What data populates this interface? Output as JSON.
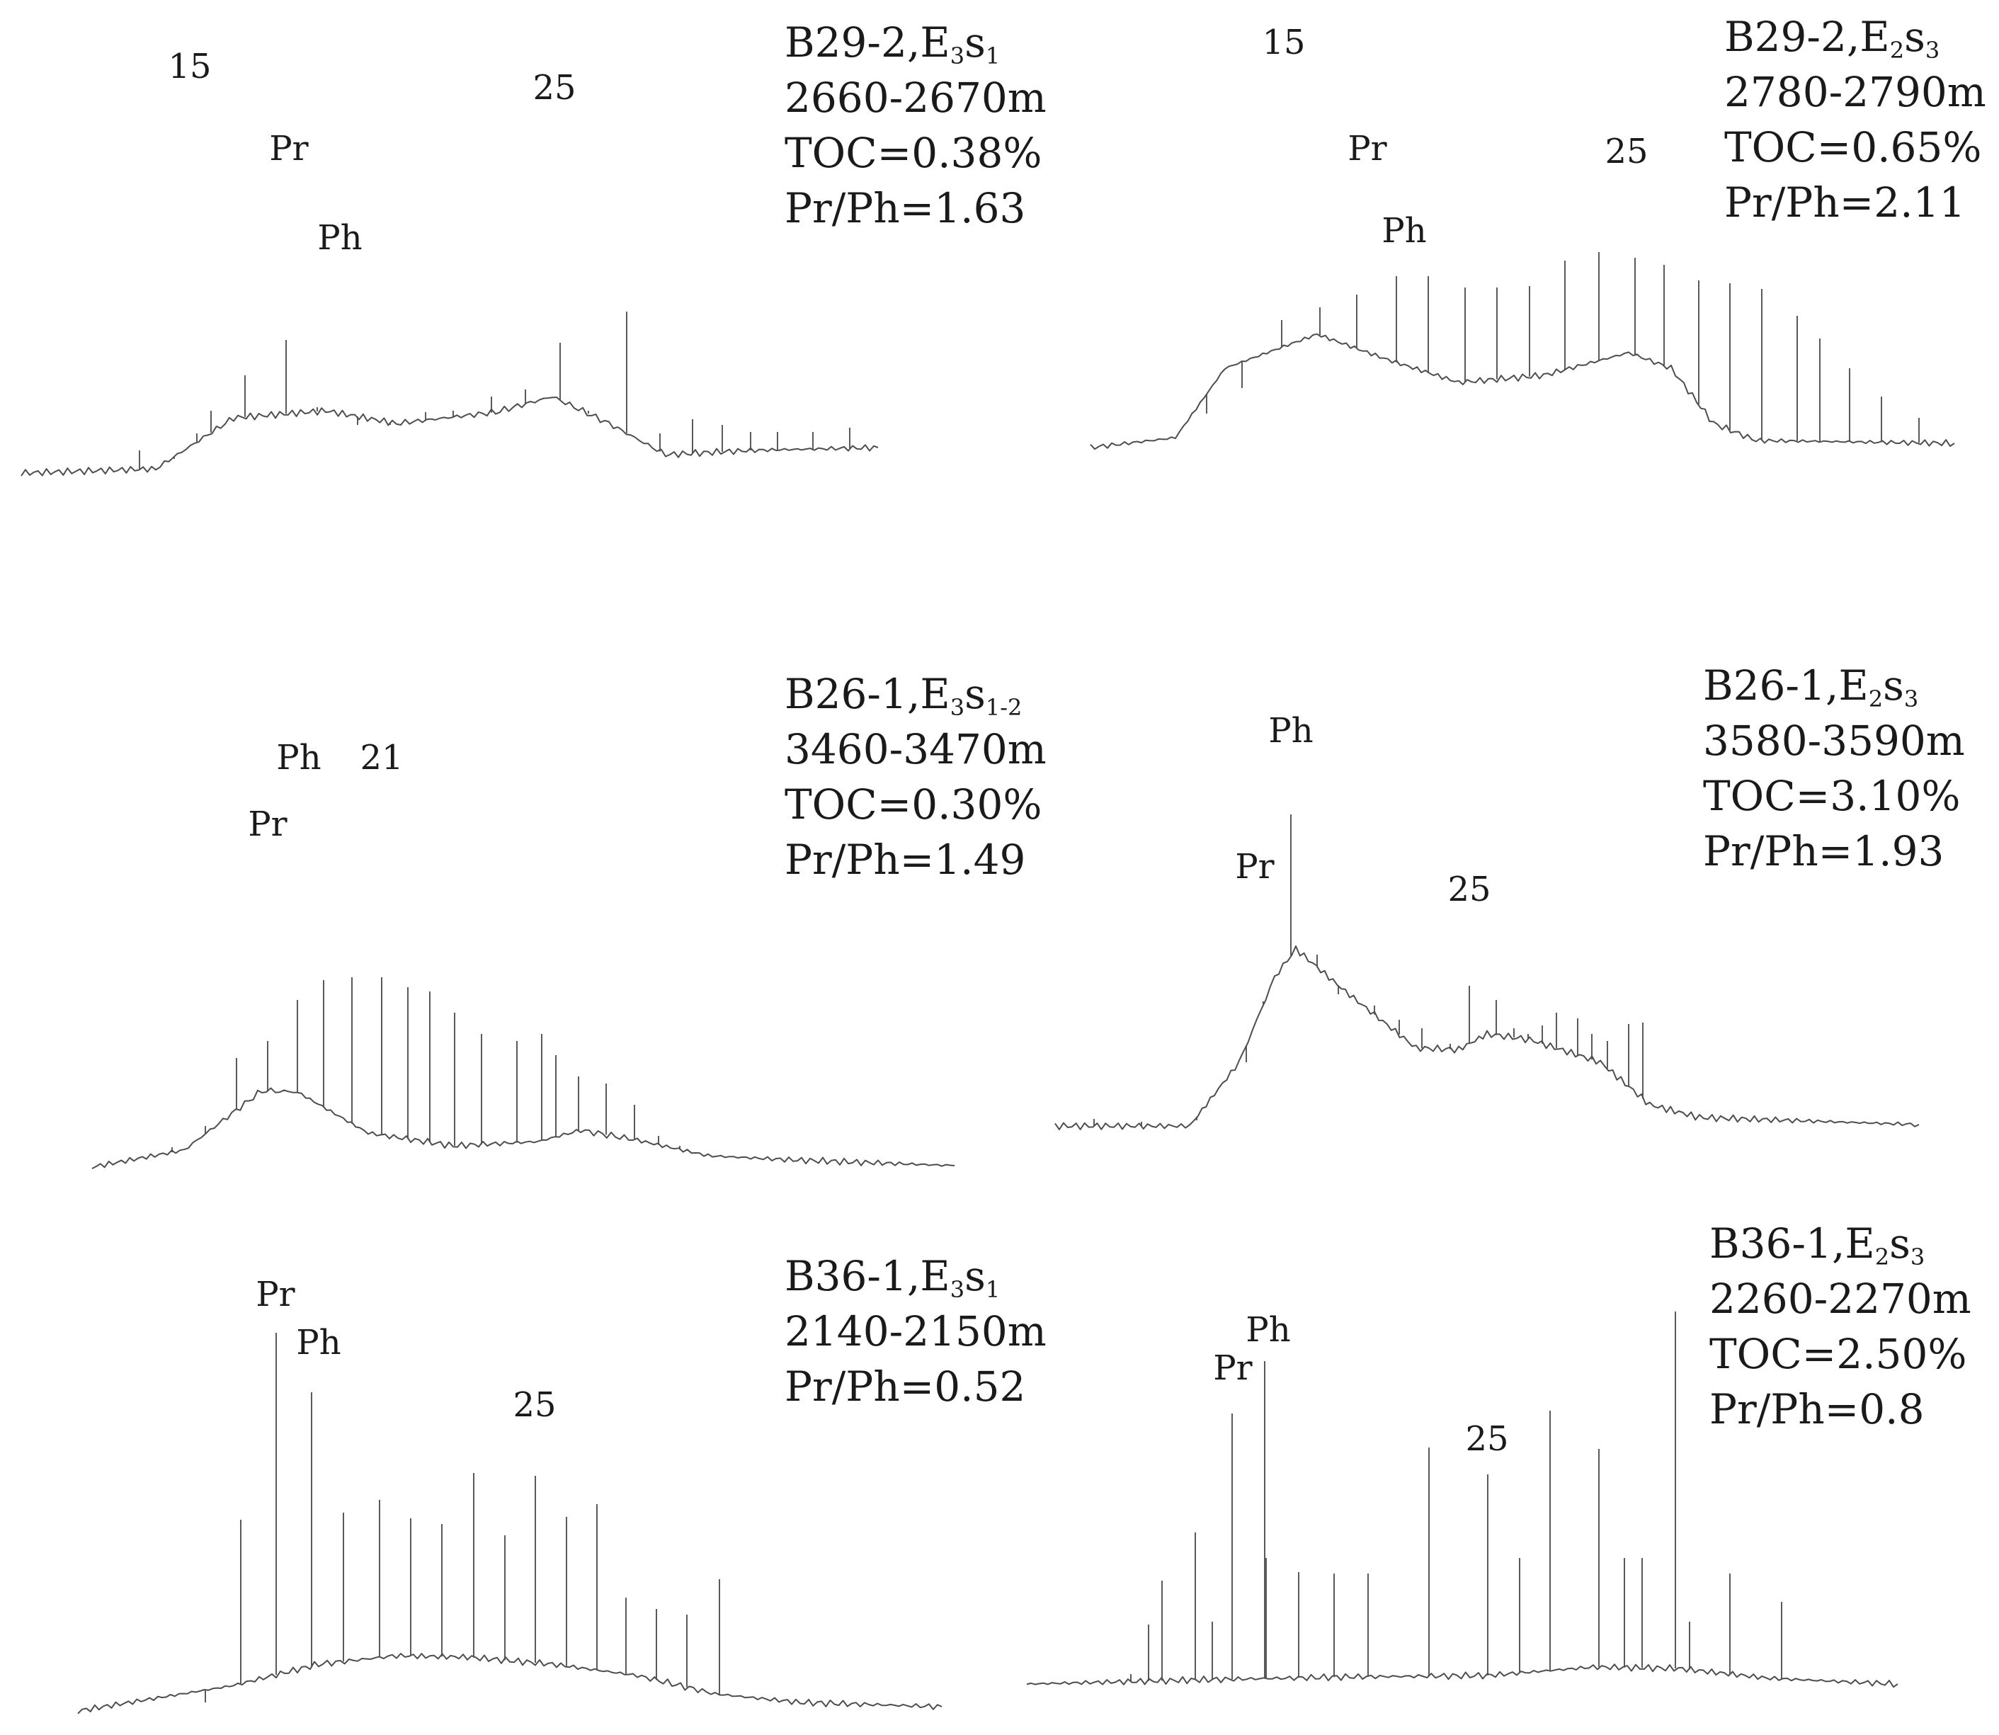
{
  "chart_data": [
    {
      "type": "chromatogram",
      "position": "top-left",
      "sample": {
        "well": "B29-2",
        "formation": "E",
        "formation_sub1": "3",
        "formation_mid": "s",
        "formation_sub2": "1"
      },
      "depth": "2660-2670m",
      "toc": "TOC=0.38%",
      "pr_ph": "Pr/Ph=1.63",
      "peak_labels": [
        "15",
        "Pr",
        "Ph",
        "25"
      ]
    },
    {
      "type": "chromatogram",
      "position": "top-right",
      "sample": {
        "well": "B29-2",
        "formation": "E",
        "formation_sub1": "2",
        "formation_mid": "s",
        "formation_sub2": "3"
      },
      "depth": "2780-2790m",
      "toc": "TOC=0.65%",
      "pr_ph": "Pr/Ph=2.11",
      "peak_labels": [
        "15",
        "Pr",
        "Ph",
        "25"
      ]
    },
    {
      "type": "chromatogram",
      "position": "middle-left",
      "sample": {
        "well": "B26-1",
        "formation": "E",
        "formation_sub1": "3",
        "formation_mid": "s",
        "formation_sub2": "1-2"
      },
      "depth": "3460-3470m",
      "toc": "TOC=0.30%",
      "pr_ph": "Pr/Ph=1.49",
      "peak_labels": [
        "Pr",
        "Ph",
        "21"
      ]
    },
    {
      "type": "chromatogram",
      "position": "middle-right",
      "sample": {
        "well": "B26-1",
        "formation": "E",
        "formation_sub1": "2",
        "formation_mid": "s",
        "formation_sub2": "3"
      },
      "depth": "3580-3590m",
      "toc": "TOC=3.10%",
      "pr_ph": "Pr/Ph=1.93",
      "peak_labels": [
        "Pr",
        "Ph",
        "25"
      ]
    },
    {
      "type": "chromatogram",
      "position": "bottom-left",
      "sample": {
        "well": "B36-1",
        "formation": "E",
        "formation_sub1": "3",
        "formation_mid": "s",
        "formation_sub2": "1"
      },
      "depth": "2140-2150m",
      "toc": "",
      "pr_ph": "Pr/Ph=0.52",
      "peak_labels": [
        "Pr",
        "Ph",
        "25"
      ]
    },
    {
      "type": "chromatogram",
      "position": "bottom-right",
      "sample": {
        "well": "B36-1",
        "formation": "E",
        "formation_sub1": "2",
        "formation_mid": "s",
        "formation_sub2": "3"
      },
      "depth": "2260-2270m",
      "toc": "TOC=2.50%",
      "pr_ph": "Pr/Ph=0.8",
      "peak_labels": [
        "Pr",
        "Ph",
        "25"
      ]
    }
  ]
}
